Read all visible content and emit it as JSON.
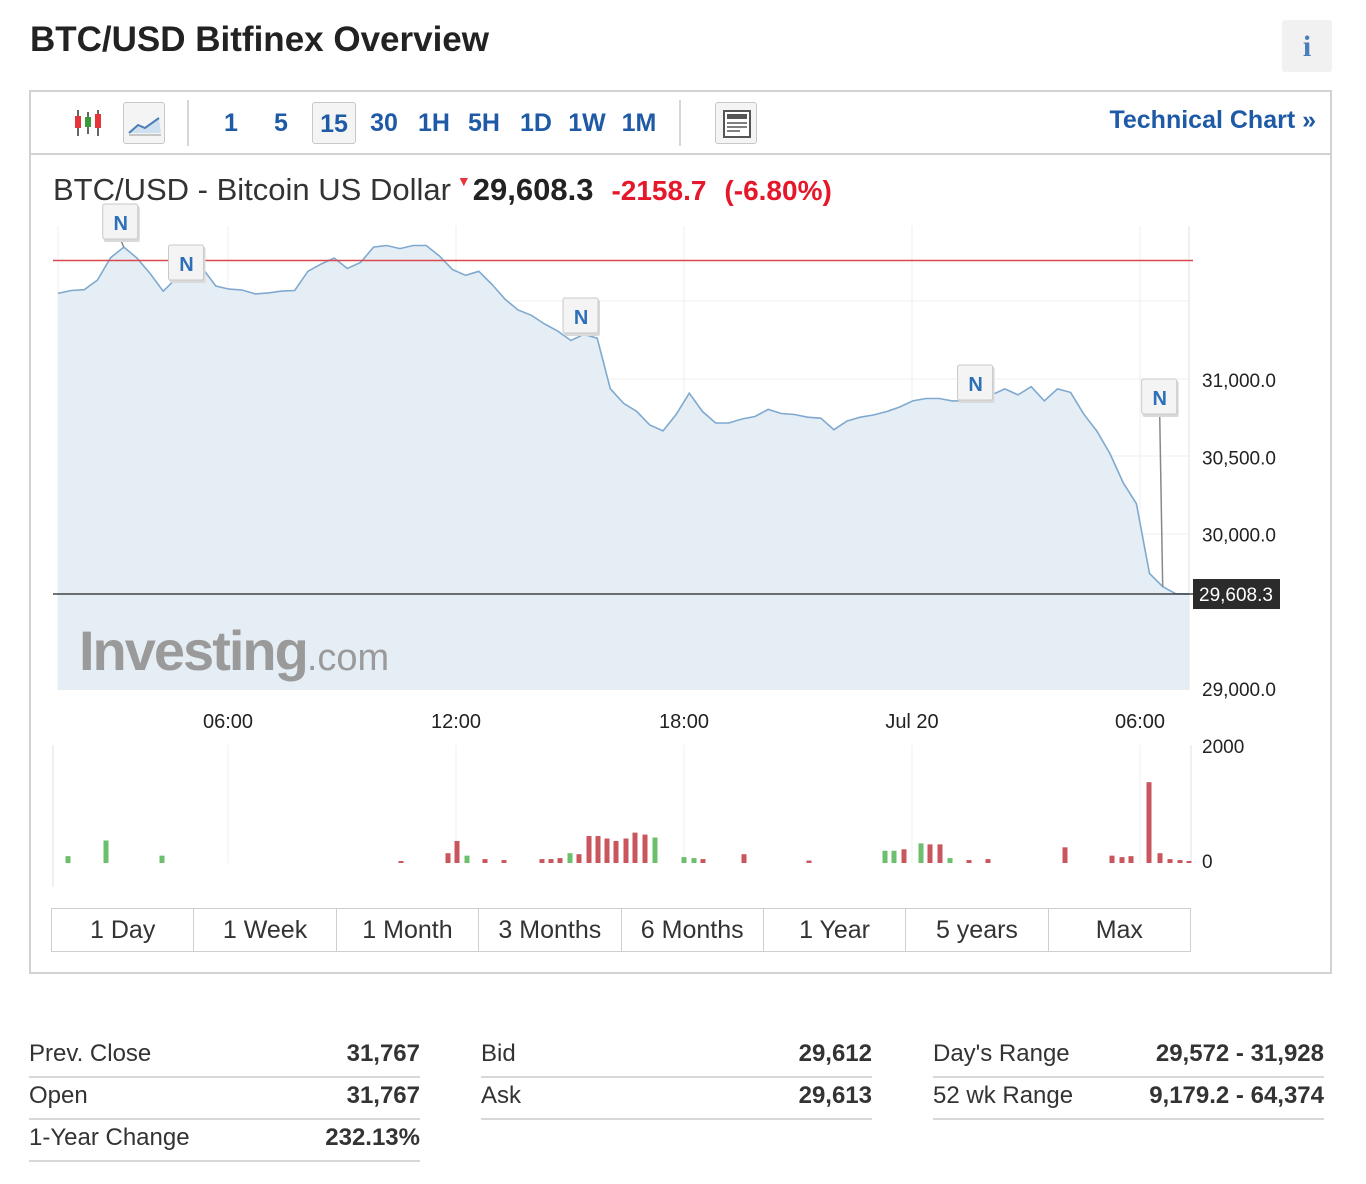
{
  "header": {
    "title": "BTC/USD Bitfinex Overview",
    "info_label": "i"
  },
  "toolbar": {
    "timeframes": [
      "1",
      "5",
      "15",
      "30",
      "1H",
      "5H",
      "1D",
      "1W",
      "1M"
    ],
    "selected_timeframe": "15",
    "technical_chart": "Technical Chart »"
  },
  "quote": {
    "name": "BTC/USD - Bitcoin US Dollar",
    "last": "29,608.3",
    "change": "-2158.7",
    "change_pct": "(-6.80%)",
    "direction": "down"
  },
  "watermark": {
    "brand": "Investing",
    "suffix": ".com"
  },
  "chart_data": {
    "type": "area",
    "x_labels": [
      "06:00",
      "12:00",
      "18:00",
      "Jul 20",
      "06:00"
    ],
    "y_ticks": [
      31000,
      30500,
      30000,
      29000
    ],
    "y_tick_labels": [
      "31,000.0",
      "30,500.0",
      "30,000.0",
      "29,000.0"
    ],
    "last_price_label": "29,608.3",
    "last_price": 29608.3,
    "prev_close": 31767,
    "news_markers": [
      "N",
      "N",
      "N",
      "N",
      "N"
    ],
    "price": [
      31554,
      31573,
      31578,
      31641,
      31785,
      31854,
      31783,
      31683,
      31568,
      31652,
      31661,
      31715,
      31602,
      31582,
      31576,
      31551,
      31557,
      31569,
      31573,
      31697,
      31744,
      31783,
      31715,
      31754,
      31854,
      31864,
      31844,
      31864,
      31864,
      31796,
      31708,
      31671,
      31697,
      31612,
      31516,
      31446,
      31412,
      31356,
      31310,
      31249,
      31289,
      31264,
      30937,
      30843,
      30790,
      30702,
      30664,
      30770,
      30908,
      30790,
      30715,
      30715,
      30741,
      30757,
      30803,
      30777,
      30770,
      30753,
      30746,
      30672,
      30728,
      30753,
      30767,
      30789,
      30819,
      30858,
      30874,
      30874,
      30858,
      30858,
      30866,
      30897,
      30936,
      30897,
      30950,
      30858,
      30936,
      30913,
      30772,
      30663,
      30515,
      30329,
      30193,
      29741,
      29656,
      29610,
      29608
    ],
    "volume_series": {
      "ylim": [
        0,
        2000
      ],
      "y_tick_labels": [
        "2000",
        "0"
      ],
      "up_color": "#6cbf6c",
      "down_color": "#c8565c",
      "bars": [
        {
          "v": 140,
          "up": true
        },
        {
          "v": 460,
          "up": true
        },
        {
          "v": 150,
          "up": true
        },
        {
          "v": 40,
          "up": false
        },
        {
          "v": 200,
          "up": false
        },
        {
          "v": 450,
          "up": false
        },
        {
          "v": 150,
          "up": true
        },
        {
          "v": 80,
          "up": false
        },
        {
          "v": 60,
          "up": false
        },
        {
          "v": 80,
          "up": false
        },
        {
          "v": 80,
          "up": false
        },
        {
          "v": 100,
          "up": false
        },
        {
          "v": 200,
          "up": true
        },
        {
          "v": 180,
          "up": false
        },
        {
          "v": 550,
          "up": false
        },
        {
          "v": 550,
          "up": false
        },
        {
          "v": 500,
          "up": false
        },
        {
          "v": 450,
          "up": false
        },
        {
          "v": 500,
          "up": false
        },
        {
          "v": 620,
          "up": false
        },
        {
          "v": 580,
          "up": false
        },
        {
          "v": 520,
          "up": true
        },
        {
          "v": 120,
          "up": true
        },
        {
          "v": 100,
          "up": true
        },
        {
          "v": 80,
          "up": false
        },
        {
          "v": 180,
          "up": false
        },
        {
          "v": 50,
          "up": false
        },
        {
          "v": 250,
          "up": true
        },
        {
          "v": 250,
          "up": true
        },
        {
          "v": 280,
          "up": false
        },
        {
          "v": 400,
          "up": true
        },
        {
          "v": 380,
          "up": false
        },
        {
          "v": 380,
          "up": false
        },
        {
          "v": 100,
          "up": true
        },
        {
          "v": 60,
          "up": false
        },
        {
          "v": 80,
          "up": false
        },
        {
          "v": 320,
          "up": false
        },
        {
          "v": 150,
          "up": false
        },
        {
          "v": 120,
          "up": false
        },
        {
          "v": 140,
          "up": false
        },
        {
          "v": 1650,
          "up": false
        },
        {
          "v": 200,
          "up": false
        },
        {
          "v": 80,
          "up": false
        },
        {
          "v": 60,
          "up": false
        },
        {
          "v": 40,
          "up": false
        }
      ]
    }
  },
  "ranges": [
    "1 Day",
    "1 Week",
    "1 Month",
    "3 Months",
    "6 Months",
    "1 Year",
    "5 years",
    "Max"
  ],
  "stats": {
    "col1": [
      {
        "label": "Prev. Close",
        "value": "31,767"
      },
      {
        "label": "Open",
        "value": "31,767"
      },
      {
        "label": "1-Year Change",
        "value": "232.13%"
      }
    ],
    "col2": [
      {
        "label": "Bid",
        "value": "29,612"
      },
      {
        "label": "Ask",
        "value": "29,613"
      }
    ],
    "col3": [
      {
        "label": "Day's Range",
        "value": "29,572 - 31,928"
      },
      {
        "label": "52 wk Range",
        "value": "9,179.2 - 64,374"
      }
    ]
  }
}
